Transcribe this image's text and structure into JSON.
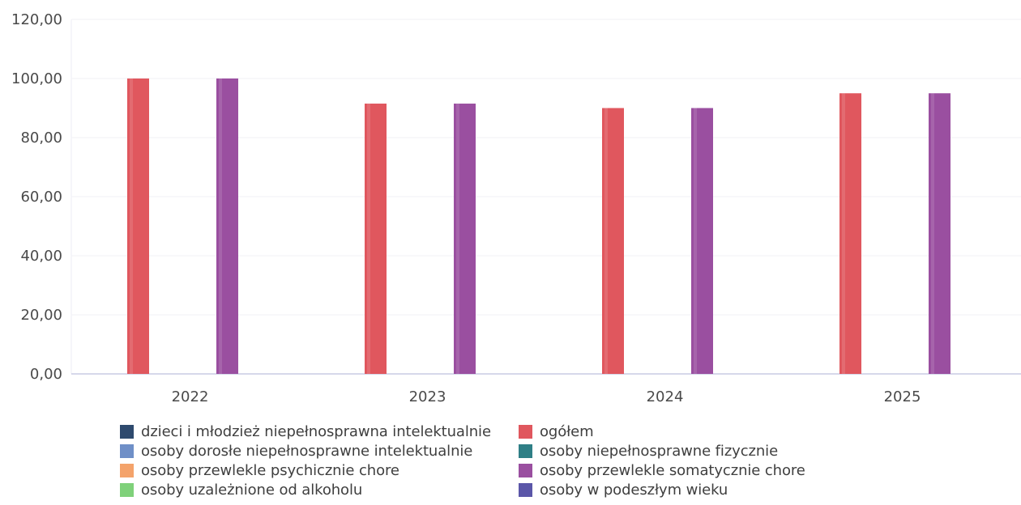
{
  "chart_data": {
    "type": "bar",
    "categories": [
      "2022",
      "2023",
      "2024",
      "2025"
    ],
    "y_ticks": [
      "0,00",
      "20,00",
      "40,00",
      "60,00",
      "80,00",
      "100,00",
      "120,00"
    ],
    "ylim": [
      0,
      120
    ],
    "grid": true,
    "legend_position": "bottom",
    "title": "",
    "xlabel": "",
    "ylabel": "",
    "series": [
      {
        "name": "dzieci i młodzież niepełnosprawna intelektualnie",
        "color": "#2e4a6e",
        "values": [
          0,
          0,
          0,
          0
        ]
      },
      {
        "name": "ogółem",
        "color": "#e0575e",
        "values": [
          100,
          91.5,
          90,
          95
        ]
      },
      {
        "name": "osoby dorosłe niepełnosprawne intelektualnie",
        "color": "#6f8fc7",
        "values": [
          0,
          0,
          0,
          0
        ]
      },
      {
        "name": "osoby niepełnosprawne fizycznie",
        "color": "#2f7f86",
        "values": [
          0,
          0,
          0,
          0
        ]
      },
      {
        "name": "osoby przewlekle psychicznie chore",
        "color": "#f4a36b",
        "values": [
          0,
          0,
          0,
          0
        ]
      },
      {
        "name": "osoby przewlekle somatycznie chore",
        "color": "#9a4fa0",
        "values": [
          100,
          91.5,
          90,
          95
        ]
      },
      {
        "name": "osoby uzależnione od alkoholu",
        "color": "#7fd17a",
        "values": [
          0,
          0,
          0,
          0
        ]
      },
      {
        "name": "osoby w podeszłym wieku",
        "color": "#5b56a8",
        "values": [
          0,
          0,
          0,
          0
        ]
      }
    ]
  }
}
